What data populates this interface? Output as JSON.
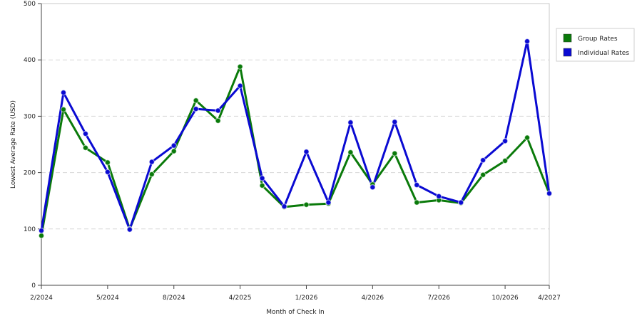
{
  "chart_data": {
    "type": "line",
    "title": "",
    "xlabel": "Month of Check In",
    "ylabel": "Lowest Average Rate (USD)",
    "ylim": [
      0,
      500
    ],
    "y_ticks": [
      "0",
      "100",
      "200",
      "300",
      "400",
      "500"
    ],
    "grid": "horizontal dashed",
    "legend_position": "right",
    "x": [
      0,
      1,
      2,
      3,
      4,
      5,
      6,
      7,
      8,
      9,
      10,
      11,
      12,
      13,
      14,
      15,
      16,
      17,
      18,
      19,
      20,
      21,
      22,
      23
    ],
    "x_tick_labels": [
      {
        "x": 0,
        "label": "2/2024"
      },
      {
        "x": 3,
        "label": "5/2024"
      },
      {
        "x": 6,
        "label": "8/2024"
      },
      {
        "x": 9,
        "label": "4/2025"
      },
      {
        "x": 12,
        "label": "1/2026"
      },
      {
        "x": 15,
        "label": "4/2026"
      },
      {
        "x": 18,
        "label": "7/2026"
      },
      {
        "x": 21,
        "label": "10/2026"
      },
      {
        "x": 23,
        "label": "4/2027"
      }
    ],
    "series": [
      {
        "name": "Group Rates",
        "color": "#0a7a0a",
        "values": [
          88,
          312,
          244,
          218,
          100,
          197,
          238,
          328,
          292,
          388,
          177,
          139,
          143,
          145,
          236,
          179,
          234,
          147,
          151,
          146,
          196,
          221,
          262,
          163
        ]
      },
      {
        "name": "Individual Rates",
        "color": "#0a0ad2",
        "values": [
          97,
          342,
          269,
          201,
          99,
          219,
          248,
          313,
          310,
          354,
          190,
          140,
          237,
          147,
          289,
          174,
          290,
          178,
          158,
          147,
          222,
          256,
          433,
          163
        ]
      }
    ]
  }
}
